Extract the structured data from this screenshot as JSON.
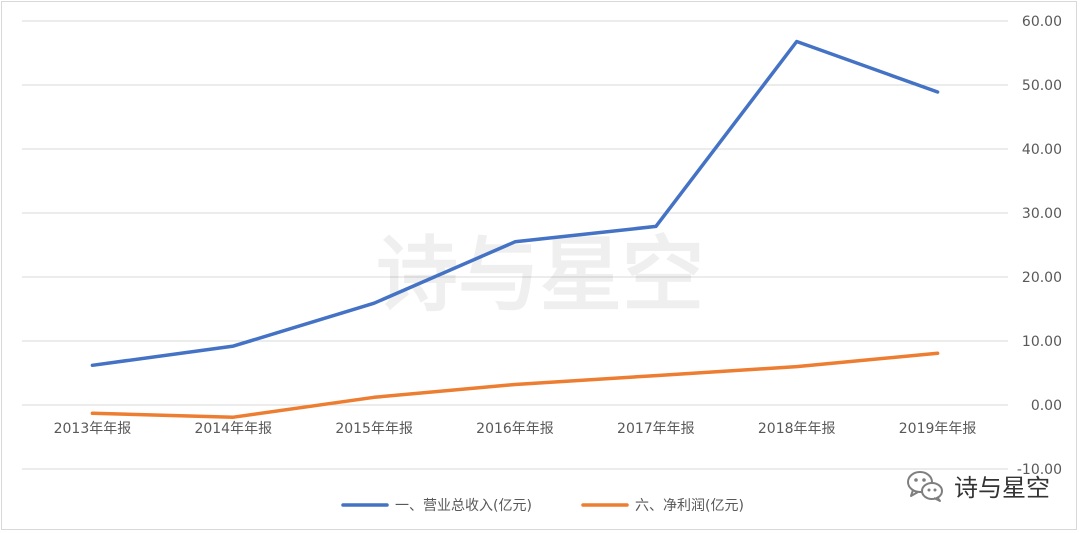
{
  "chart_data": {
    "type": "line",
    "categories": [
      "2013年年报",
      "2014年年报",
      "2015年年报",
      "2016年年报",
      "2017年年报",
      "2018年年报",
      "2019年年报"
    ],
    "series": [
      {
        "name": "一、营业总收入(亿元)",
        "color": "#4472c4",
        "values": [
          6.2,
          9.2,
          15.9,
          25.5,
          27.9,
          56.8,
          48.9
        ]
      },
      {
        "name": "六、净利润(亿元)",
        "color": "#ed7d31",
        "values": [
          -1.3,
          -1.9,
          1.2,
          3.2,
          4.6,
          6.0,
          8.1
        ]
      }
    ],
    "ylim": [
      -10,
      60
    ],
    "yticks": [
      60,
      50,
      40,
      30,
      20,
      10,
      0,
      -10
    ],
    "ytick_labels": [
      "60.00",
      "50.00",
      "40.00",
      "30.00",
      "20.00",
      "10.00",
      "0.00",
      "-10.00"
    ],
    "y_axis_side": "right",
    "grid": true,
    "legend_position": "bottom",
    "title": "",
    "xlabel": "",
    "ylabel": ""
  },
  "watermark": "诗与星空",
  "brand": {
    "text": "诗与星空",
    "icon": "wechat-icon",
    "color": "#7f7f7f"
  }
}
